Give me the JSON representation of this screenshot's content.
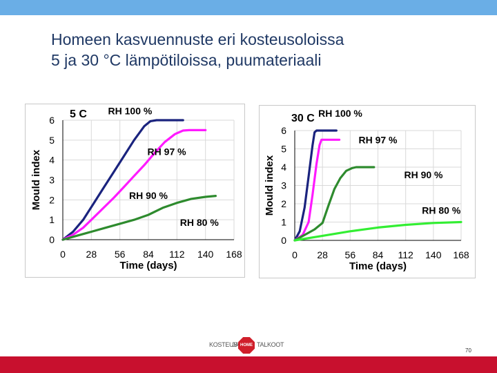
{
  "slide": {
    "title_line1": "Homeen kasvuennuste eri kosteusoloissa",
    "title_line2": "5 ja 30 °C lämpötiloissa, puumateriaali",
    "page_number": "70",
    "logo": {
      "left_text": "KOSTEUS-",
      "mid_text": "JA",
      "badge_text": "HOME",
      "right_text": "TALKOOT"
    }
  },
  "colors": {
    "top_bar": "#6aaee6",
    "bottom_bar": "#c8102e",
    "title": "#1f3864",
    "rh100": "#1a237e",
    "rh97": "#ff1aff",
    "rh90": "#2e8b2e",
    "rh80": "#33ee33"
  },
  "chart_data": [
    {
      "type": "line",
      "title": "5 C",
      "xlabel": "Time (days)",
      "ylabel": "Mould index",
      "xlim": [
        0,
        168
      ],
      "ylim": [
        0,
        6
      ],
      "xticks": [
        0,
        28,
        56,
        84,
        112,
        140,
        168
      ],
      "yticks": [
        0,
        1,
        2,
        3,
        4,
        5,
        6
      ],
      "grid": true,
      "series": [
        {
          "name": "RH 100 %",
          "color": "#1a237e",
          "x": [
            0,
            10,
            20,
            30,
            40,
            50,
            60,
            70,
            80,
            86,
            92,
            100,
            110,
            118
          ],
          "y": [
            0,
            0.4,
            1.0,
            1.8,
            2.6,
            3.4,
            4.2,
            5.0,
            5.7,
            5.95,
            6.0,
            6.0,
            6.0,
            6.0
          ]
        },
        {
          "name": "RH 97 %",
          "color": "#ff1aff",
          "x": [
            0,
            10,
            20,
            30,
            40,
            50,
            60,
            70,
            80,
            90,
            100,
            110,
            118,
            124,
            140
          ],
          "y": [
            0,
            0.25,
            0.6,
            1.1,
            1.6,
            2.1,
            2.65,
            3.2,
            3.75,
            4.35,
            4.9,
            5.3,
            5.48,
            5.5,
            5.5
          ]
        },
        {
          "name": "RH 90 %",
          "color": "#2e8b2e",
          "x": [
            0,
            14,
            28,
            42,
            56,
            70,
            84,
            98,
            112,
            126,
            140,
            150
          ],
          "y": [
            0,
            0.2,
            0.4,
            0.6,
            0.8,
            1.0,
            1.25,
            1.6,
            1.85,
            2.05,
            2.15,
            2.2
          ]
        }
      ],
      "labels": [
        {
          "text": "RH 100 %",
          "x": 66,
          "y": 6.3
        },
        {
          "text": "RH 97 %",
          "x": 102,
          "y": 4.25
        },
        {
          "text": "RH 90 %",
          "x": 84,
          "y": 2.05
        },
        {
          "text": "RH 80 %",
          "x": 134,
          "y": 0.7
        }
      ]
    },
    {
      "type": "line",
      "title": "30 C",
      "xlabel": "Time (days)",
      "ylabel": "Mould index",
      "xlim": [
        0,
        168
      ],
      "ylim": [
        0,
        6
      ],
      "xticks": [
        0,
        28,
        56,
        84,
        112,
        140,
        168
      ],
      "yticks": [
        0,
        1,
        2,
        3,
        4,
        5,
        6
      ],
      "grid": true,
      "series": [
        {
          "name": "RH 100 %",
          "color": "#1a237e",
          "x": [
            0,
            5,
            10,
            14,
            18,
            20,
            22,
            24,
            28,
            36,
            42
          ],
          "y": [
            0,
            0.5,
            1.8,
            3.5,
            5.2,
            5.9,
            6.0,
            6.0,
            6.0,
            6.0,
            6.0
          ]
        },
        {
          "name": "RH 97 %",
          "color": "#ff1aff",
          "x": [
            0,
            8,
            14,
            18,
            22,
            25,
            27,
            30,
            36,
            45
          ],
          "y": [
            0,
            0.3,
            1.0,
            2.5,
            4.2,
            5.2,
            5.5,
            5.5,
            5.5,
            5.5
          ]
        },
        {
          "name": "RH 90 %",
          "color": "#2e8b2e",
          "x": [
            0,
            10,
            20,
            28,
            34,
            40,
            46,
            52,
            58,
            62,
            68,
            80
          ],
          "y": [
            0,
            0.3,
            0.6,
            0.95,
            1.9,
            2.8,
            3.4,
            3.8,
            3.95,
            4.0,
            4.0,
            4.0
          ]
        },
        {
          "name": "RH 80 %",
          "color": "#33ee33",
          "x": [
            0,
            28,
            56,
            84,
            112,
            140,
            168
          ],
          "y": [
            0,
            0.25,
            0.5,
            0.7,
            0.85,
            0.95,
            1.0
          ]
        }
      ],
      "labels": [
        {
          "text": "RH 100 %",
          "x": 46,
          "y": 6.75
        },
        {
          "text": "RH 97 %",
          "x": 84,
          "y": 5.3
        },
        {
          "text": "RH 90 %",
          "x": 130,
          "y": 3.4
        },
        {
          "text": "RH 80 %",
          "x": 148,
          "y": 1.45
        }
      ]
    }
  ]
}
